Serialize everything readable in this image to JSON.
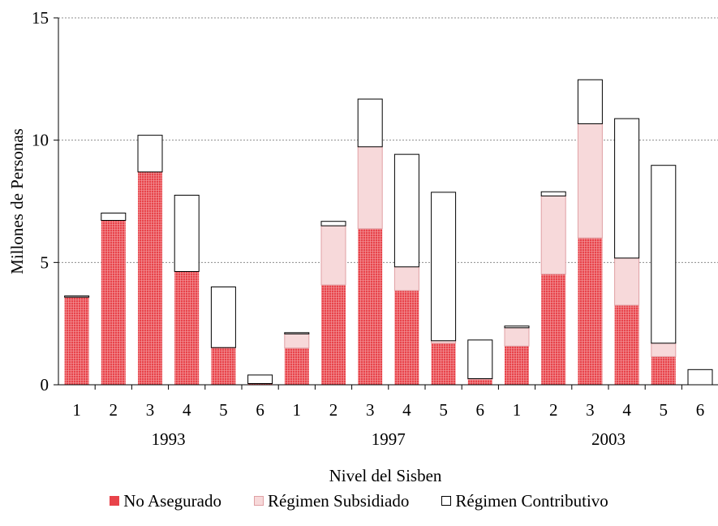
{
  "chart_data": {
    "type": "bar",
    "stacked": true,
    "xlabel": "Nivel del Sisben",
    "ylabel": "Millones de Personas",
    "ylim": [
      0,
      15
    ],
    "yticks": [
      "0",
      "5",
      "10",
      "15"
    ],
    "grid": true,
    "legend_position": "bottom",
    "groups": [
      {
        "label": "1993",
        "categories": [
          "1",
          "2",
          "3",
          "4",
          "5",
          "6"
        ]
      },
      {
        "label": "1997",
        "categories": [
          "1",
          "2",
          "3",
          "4",
          "5",
          "6"
        ]
      },
      {
        "label": "2003",
        "categories": [
          "1",
          "2",
          "3",
          "4",
          "5",
          "6"
        ]
      }
    ],
    "series": [
      {
        "name": "No Asegurado",
        "color": "#e8434a",
        "values": [
          3.58,
          6.72,
          8.7,
          4.63,
          1.52,
          0.05,
          1.5,
          4.08,
          6.38,
          3.85,
          1.7,
          0.22,
          1.58,
          4.52,
          6.0,
          3.25,
          1.15,
          0.0
        ]
      },
      {
        "name": "Régimen Subsidiado",
        "color": "#f7d9da",
        "values": [
          0.0,
          0.0,
          0.0,
          0.0,
          0.0,
          0.0,
          0.58,
          2.42,
          3.35,
          0.97,
          0.1,
          0.03,
          0.75,
          3.2,
          4.67,
          1.93,
          0.55,
          0.0
        ]
      },
      {
        "name": "Régimen Contributivo",
        "color": "#ffffff",
        "values": [
          0.05,
          0.3,
          1.5,
          3.12,
          2.48,
          0.35,
          0.05,
          0.18,
          1.95,
          4.6,
          6.07,
          1.58,
          0.07,
          0.17,
          1.8,
          5.7,
          7.27,
          0.62
        ]
      }
    ]
  }
}
